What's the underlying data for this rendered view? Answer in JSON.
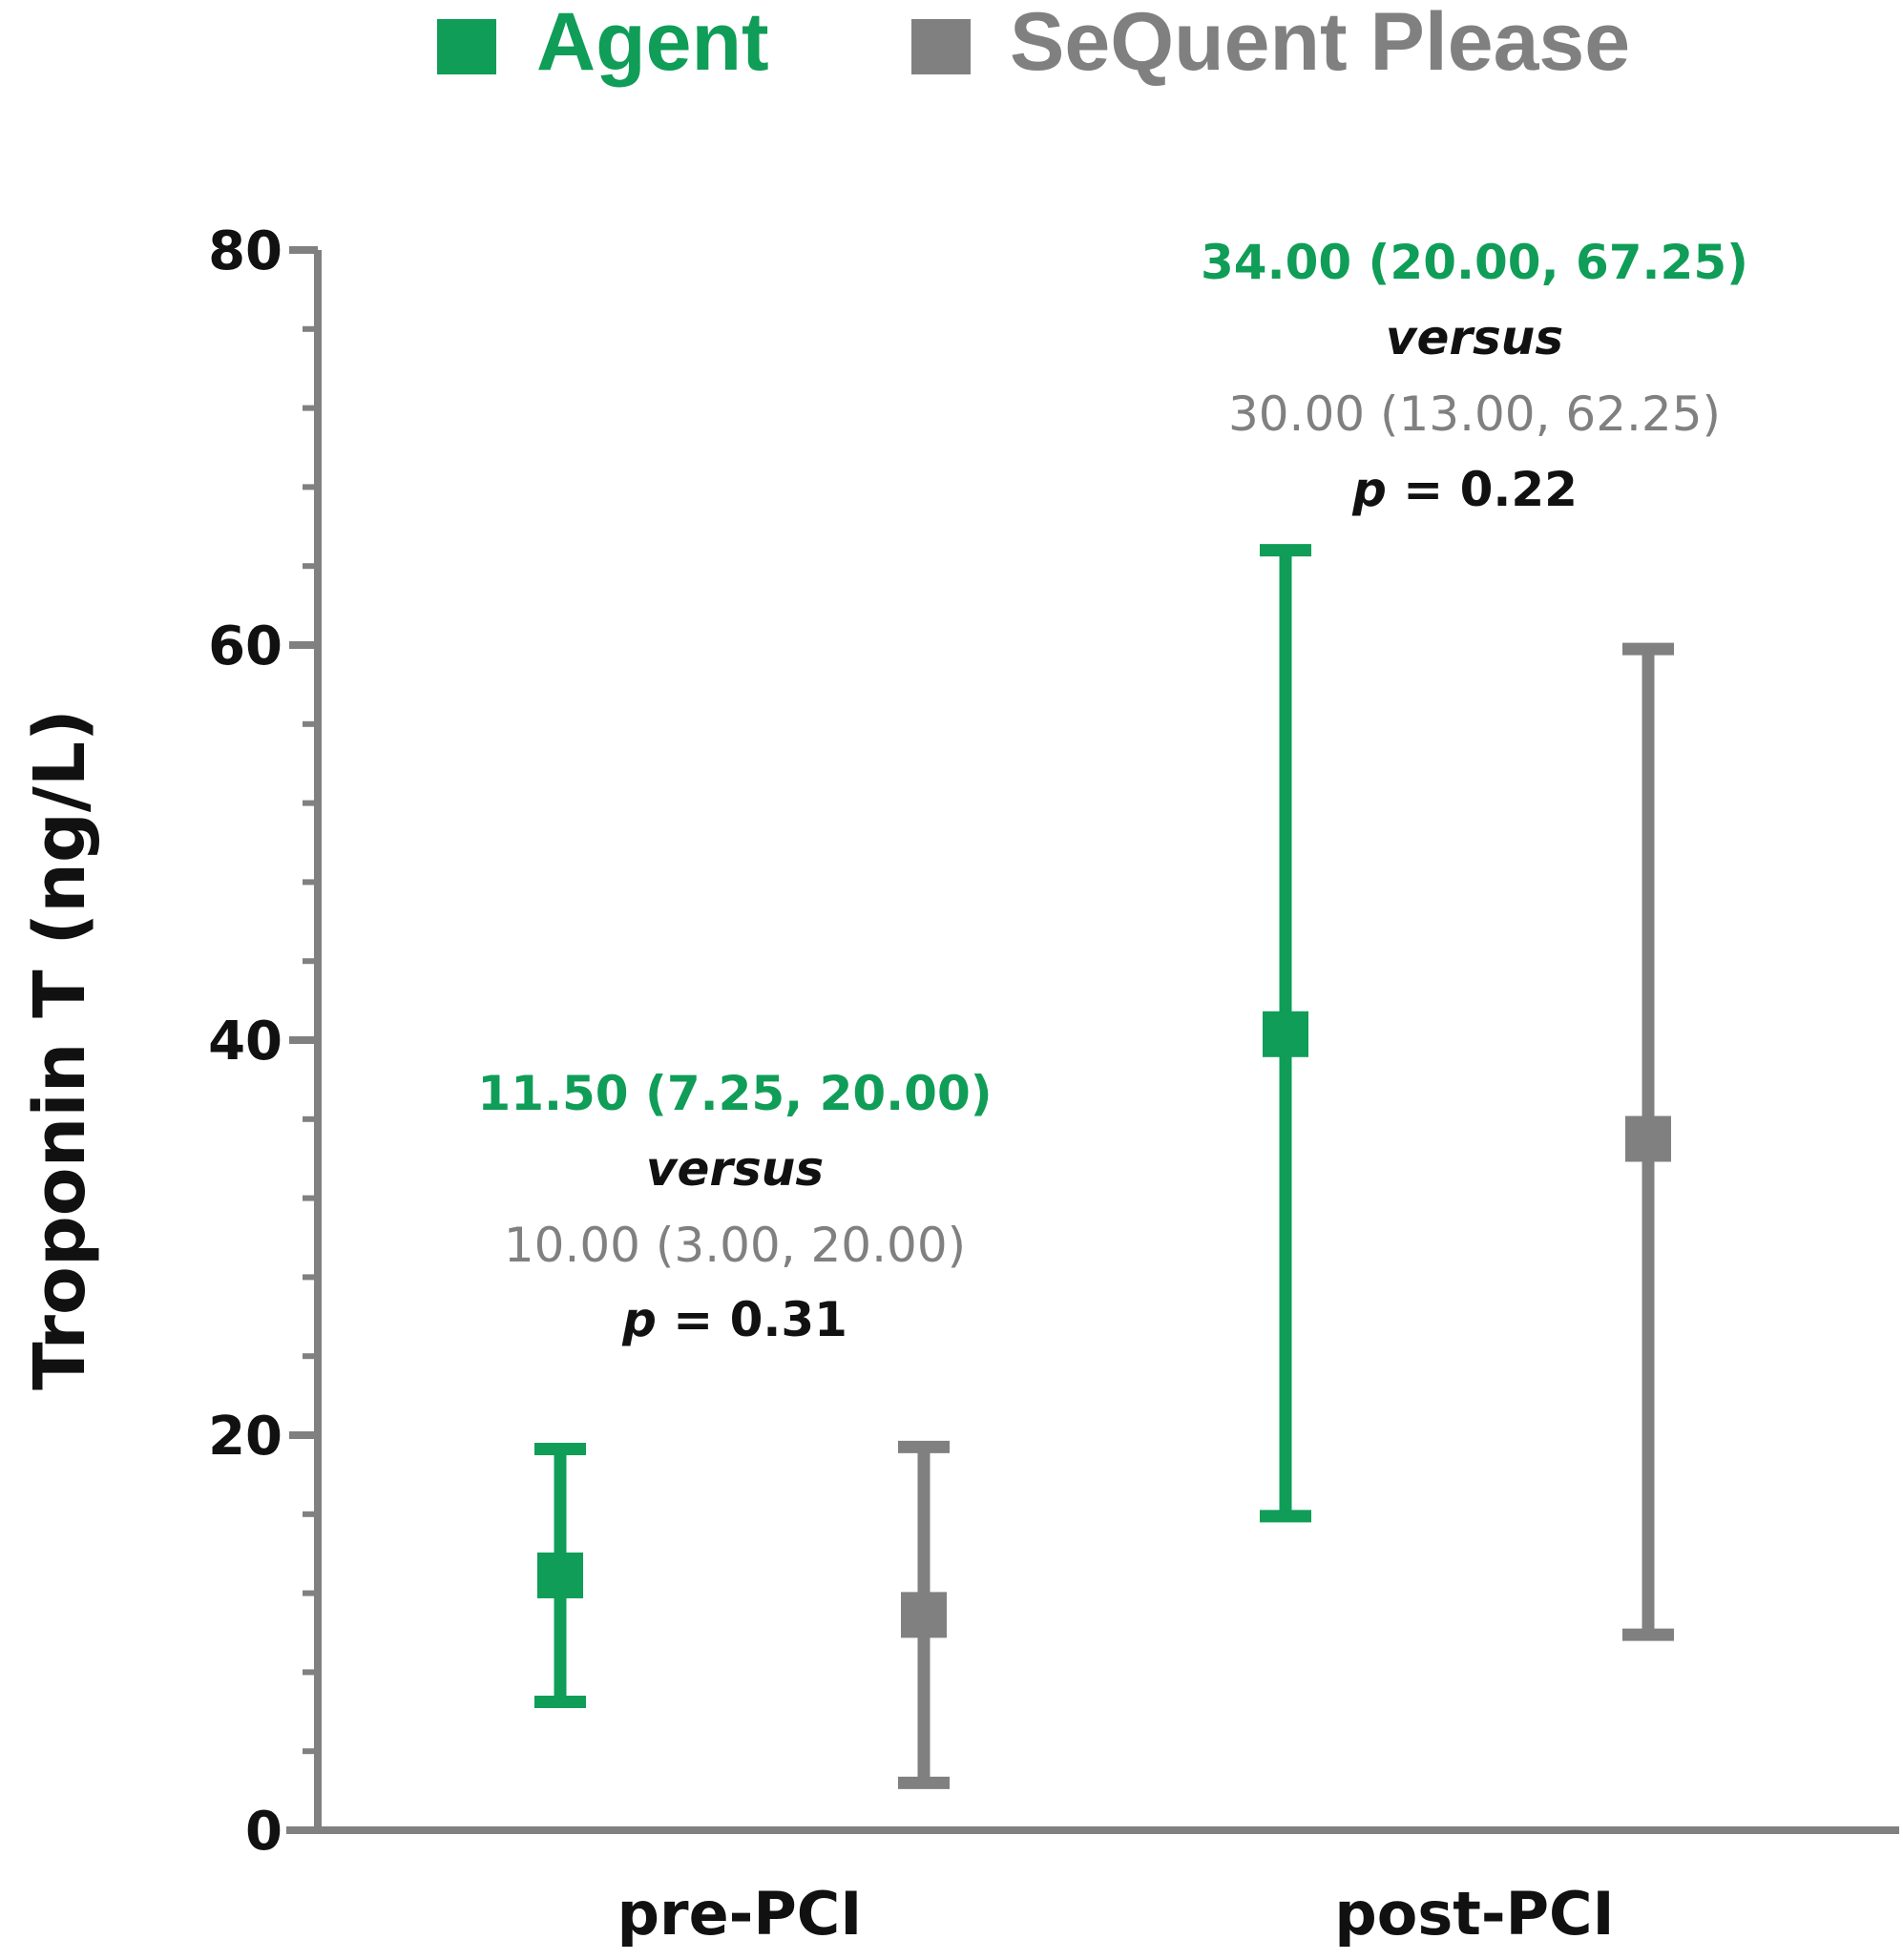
{
  "chart_data": {
    "type": "scatter",
    "ylabel": "Troponin T (ng/L)",
    "ylim": [
      0,
      80
    ],
    "yticks": [
      "0",
      "20",
      "40",
      "60",
      "80"
    ],
    "categories": [
      "pre-PCI",
      "post-PCI"
    ],
    "series": [
      {
        "name": "Agent",
        "color": "#0f9d58",
        "points": [
          {
            "category": "pre-PCI",
            "y": 12.9,
            "low": 6.5,
            "high": 19.3
          },
          {
            "category": "post-PCI",
            "y": 40.3,
            "low": 15.9,
            "high": 64.8
          }
        ]
      },
      {
        "name": "SeQuent Please",
        "color": "#808080",
        "points": [
          {
            "category": "pre-PCI",
            "y": 10.9,
            "low": 2.4,
            "high": 19.4
          },
          {
            "category": "post-PCI",
            "y": 35.0,
            "low": 9.9,
            "high": 59.8
          }
        ]
      }
    ],
    "annotations": [
      {
        "category": "pre-PCI",
        "agent_text": "11.50 (7.25, 20.00)",
        "versus": "versus",
        "sequent_text": "10.00 (3.00, 20.00)",
        "p_label": "p",
        "p_value": " = 0.31"
      },
      {
        "category": "post-PCI",
        "agent_text": "34.00 (20.00, 67.25)",
        "versus": "versus",
        "sequent_text": "30.00 (13.00, 62.25)",
        "p_label": "p",
        "p_value": " = 0.22"
      }
    ],
    "legend": {
      "position": "top-center"
    }
  }
}
